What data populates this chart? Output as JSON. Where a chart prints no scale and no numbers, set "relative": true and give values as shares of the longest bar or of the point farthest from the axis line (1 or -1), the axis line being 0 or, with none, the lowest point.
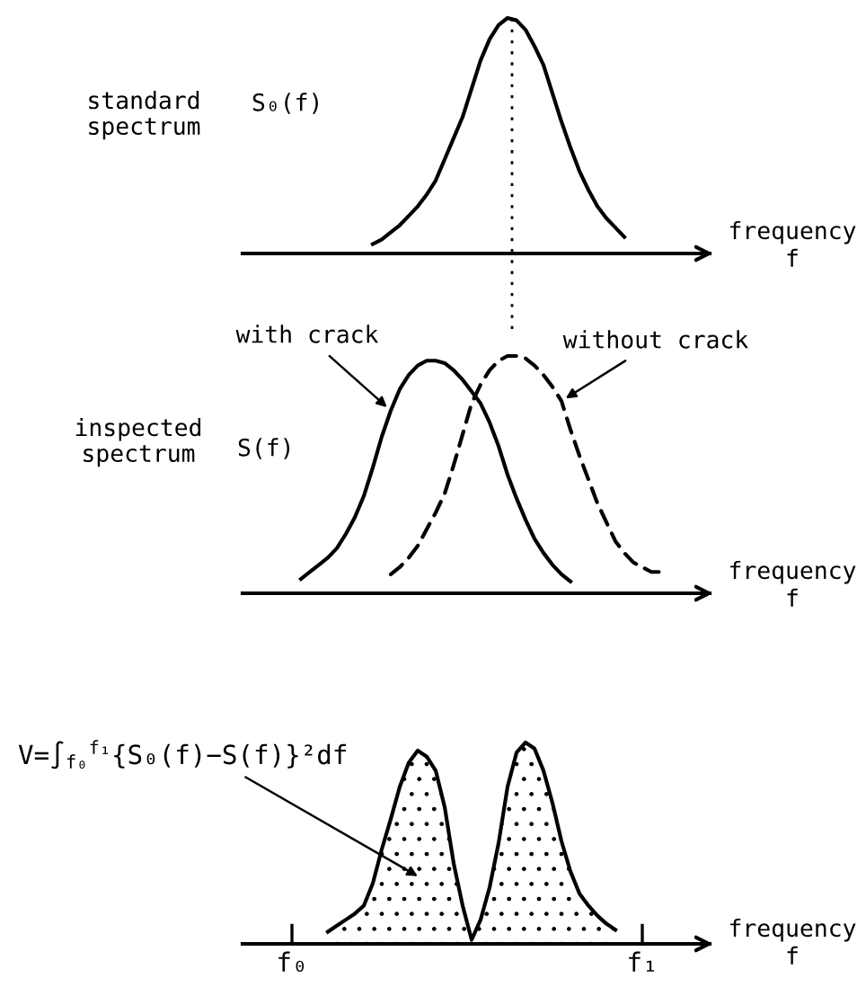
{
  "chart_data": [
    {
      "type": "line",
      "relative": true,
      "ylabel": "standard\nspectrum",
      "xlabel": "frequency\nf",
      "annotations": [
        "S₀(f)"
      ],
      "categories": [
        null,
        null,
        null,
        null,
        null,
        null,
        null,
        null,
        null,
        null,
        null,
        null,
        null,
        null,
        null,
        null,
        null,
        null,
        null,
        null,
        null,
        null,
        null,
        null,
        null,
        null,
        null,
        null,
        null,
        null,
        null,
        null,
        null,
        null,
        null,
        null,
        null,
        null,
        null,
        null,
        null,
        null,
        null,
        null,
        null,
        null,
        null,
        null,
        null,
        null,
        null,
        null
      ],
      "series": [
        {
          "color": "#000000",
          "values": [
            null,
            null,
            null,
            null,
            null,
            null,
            null,
            null,
            null,
            null,
            null,
            null,
            null,
            null,
            0.04,
            0.06,
            0.09,
            0.12,
            0.16,
            0.2,
            0.25,
            0.31,
            0.4,
            0.49,
            0.58,
            0.7,
            0.82,
            0.91,
            0.97,
            1.0,
            0.99,
            0.95,
            0.88,
            0.8,
            0.68,
            0.56,
            0.45,
            0.35,
            0.27,
            0.2,
            0.15,
            0.11,
            0.07,
            null,
            null,
            null,
            null,
            null,
            null,
            null,
            null,
            null
          ]
        }
      ]
    },
    {
      "type": "line",
      "relative": true,
      "ylabel": "inspected\nspectrum",
      "xlabel": "frequency\nf",
      "annotations": [
        "S(f)"
      ],
      "categories": [
        null,
        null,
        null,
        null,
        null,
        null,
        null,
        null,
        null,
        null,
        null,
        null,
        null,
        null,
        null,
        null,
        null,
        null,
        null,
        null,
        null,
        null,
        null,
        null,
        null,
        null,
        null,
        null,
        null,
        null,
        null,
        null,
        null,
        null,
        null,
        null,
        null,
        null,
        null,
        null,
        null,
        null,
        null,
        null,
        null,
        null,
        null,
        null,
        null,
        null,
        null,
        null
      ],
      "series": [
        {
          "name": "with crack",
          "color": "#000000",
          "line_style": "solid",
          "values": [
            null,
            null,
            null,
            null,
            null,
            null,
            0.06,
            0.09,
            0.12,
            0.15,
            0.19,
            0.25,
            0.32,
            0.41,
            0.53,
            0.66,
            0.77,
            0.86,
            0.92,
            0.96,
            0.98,
            0.98,
            0.97,
            0.94,
            0.9,
            0.85,
            0.8,
            0.72,
            0.62,
            0.5,
            0.4,
            0.31,
            0.23,
            0.17,
            0.12,
            0.08,
            0.05,
            null,
            null,
            null,
            null,
            null,
            null,
            null,
            null,
            null,
            null,
            null,
            null,
            null,
            null,
            null
          ]
        },
        {
          "name": "without crack",
          "color": "#000000",
          "line_style": "dashed",
          "values": [
            null,
            null,
            null,
            null,
            null,
            null,
            null,
            null,
            null,
            null,
            null,
            null,
            null,
            null,
            null,
            null,
            0.08,
            0.11,
            0.15,
            0.2,
            0.27,
            0.34,
            0.42,
            0.54,
            0.67,
            0.8,
            0.88,
            0.94,
            0.98,
            1.0,
            1.0,
            0.99,
            0.96,
            0.92,
            0.87,
            0.81,
            0.69,
            0.58,
            0.48,
            0.38,
            0.3,
            0.22,
            0.17,
            0.13,
            0.11,
            0.09,
            0.09,
            null,
            null,
            null,
            null,
            null
          ]
        }
      ]
    },
    {
      "type": "area",
      "relative": true,
      "xlabel": "frequency\nf",
      "annotations": [
        "V=∫$_{f₀}$$^{f₁}${S₀(f)−S(f)}²df"
      ],
      "categories": [
        null,
        null,
        null,
        null,
        null,
        "f₀",
        null,
        null,
        null,
        null,
        null,
        null,
        null,
        null,
        null,
        null,
        null,
        null,
        null,
        null,
        null,
        null,
        null,
        null,
        null,
        null,
        null,
        null,
        null,
        null,
        null,
        null,
        null,
        null,
        null,
        null,
        null,
        null,
        null,
        null,
        null,
        null,
        null,
        null,
        "f₁",
        null,
        null,
        null,
        null,
        null,
        null,
        null
      ],
      "series": [
        {
          "color": "#000000",
          "values": [
            null,
            null,
            null,
            null,
            null,
            null,
            null,
            null,
            null,
            0.06,
            0.09,
            0.12,
            0.15,
            0.19,
            0.3,
            0.47,
            0.62,
            0.78,
            0.9,
            0.96,
            0.93,
            0.86,
            0.68,
            0.4,
            0.19,
            0.02,
            0.12,
            0.28,
            0.5,
            0.78,
            0.95,
            1.0,
            0.97,
            0.86,
            0.7,
            0.51,
            0.36,
            0.25,
            0.19,
            0.14,
            0.1,
            0.07,
            null,
            null,
            null,
            null,
            null,
            null,
            null,
            null,
            null,
            null
          ]
        }
      ]
    }
  ]
}
